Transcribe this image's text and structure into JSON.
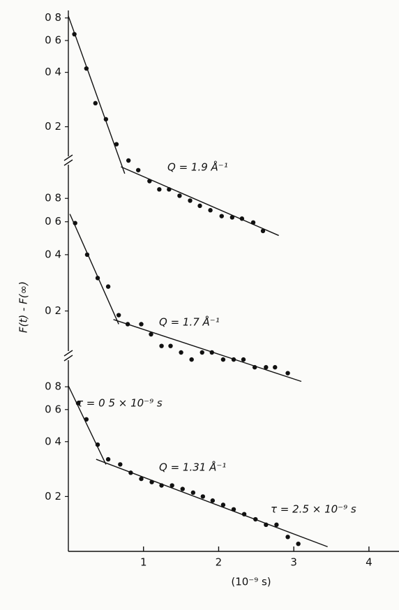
{
  "chart_data": {
    "type": "scatter",
    "log_y": true,
    "y_label": "F(t) - F(∞)",
    "x_label": "(10⁻⁹ s)",
    "xlim": [
      0,
      4.4
    ],
    "xticks": [
      1,
      2,
      3,
      4
    ],
    "color": "#111111",
    "panels": [
      {
        "ylim": [
          0.13,
          0.88
        ],
        "yticks": [
          {
            "value": 0.8,
            "label": "0 8"
          },
          {
            "value": 0.6,
            "label": "0 6"
          },
          {
            "value": 0.4,
            "label": "0 4"
          },
          {
            "value": 0.2,
            "label": "0 2"
          }
        ],
        "points": {
          "x": [
            0.08,
            0.24,
            0.36,
            0.5,
            0.64,
            0.8,
            0.93,
            1.08,
            1.21,
            1.34,
            1.48,
            1.62,
            1.75,
            1.89,
            2.04,
            2.18,
            2.31,
            2.46,
            2.59
          ],
          "values": [
            0.65,
            0.42,
            0.27,
            0.22,
            0.16,
            0.13,
            0.115,
            0.1,
            0.09,
            0.09,
            0.083,
            0.078,
            0.073,
            0.069,
            0.064,
            0.063,
            0.062,
            0.059,
            0.053
          ]
        },
        "fits": [
          {
            "x": [
              0,
              0.75
            ],
            "values": [
              0.82,
              0.11
            ]
          },
          {
            "x": [
              0.7,
              2.8
            ],
            "values": [
              0.12,
              0.05
            ]
          }
        ],
        "annotations": [
          "Q = 1.9 Å⁻¹"
        ]
      },
      {
        "ylim": [
          0.12,
          1.17
        ],
        "yticks": [
          {
            "value": 0.8,
            "label": "0 8"
          },
          {
            "value": 0.6,
            "label": "0 6"
          },
          {
            "value": 0.4,
            "label": "0 4"
          },
          {
            "value": 0.2,
            "label": "0 2"
          }
        ],
        "points": {
          "x": [
            0.09,
            0.25,
            0.39,
            0.53,
            0.67,
            0.79,
            0.97,
            1.1,
            1.24,
            1.36,
            1.5,
            1.64,
            1.78,
            1.91,
            2.06,
            2.2,
            2.33,
            2.48,
            2.63,
            2.75,
            2.92
          ],
          "values": [
            0.59,
            0.4,
            0.3,
            0.27,
            0.19,
            0.17,
            0.17,
            0.15,
            0.13,
            0.13,
            0.12,
            0.11,
            0.12,
            0.12,
            0.11,
            0.11,
            0.11,
            0.1,
            0.1,
            0.1,
            0.093
          ]
        },
        "fits": [
          {
            "x": [
              0.02,
              0.67
            ],
            "values": [
              0.66,
              0.17
            ]
          },
          {
            "x": [
              0.6,
              3.1
            ],
            "values": [
              0.18,
              0.084
            ]
          }
        ],
        "annotations": [
          "Q = 1.7 Å⁻¹"
        ]
      },
      {
        "ylim": [
          0.1,
          1.13
        ],
        "yticks": [
          {
            "value": 0.8,
            "label": "0 8"
          },
          {
            "value": 0.6,
            "label": "0 6"
          },
          {
            "value": 0.4,
            "label": "0 4"
          },
          {
            "value": 0.2,
            "label": "0 2"
          }
        ],
        "points": {
          "x": [
            0.13,
            0.24,
            0.39,
            0.53,
            0.69,
            0.83,
            0.97,
            1.11,
            1.24,
            1.38,
            1.52,
            1.66,
            1.79,
            1.92,
            2.06,
            2.2,
            2.34,
            2.49,
            2.63,
            2.77,
            2.92,
            3.06
          ],
          "values": [
            0.65,
            0.53,
            0.385,
            0.32,
            0.3,
            0.27,
            0.25,
            0.24,
            0.23,
            0.23,
            0.22,
            0.21,
            0.2,
            0.19,
            0.18,
            0.17,
            0.16,
            0.15,
            0.14,
            0.14,
            0.12,
            0.11
          ]
        },
        "fits": [
          {
            "x": [
              0,
              0.5
            ],
            "values": [
              0.81,
              0.3
            ]
          },
          {
            "x": [
              0.37,
              3.45
            ],
            "values": [
              0.32,
              0.106
            ]
          }
        ],
        "annotations": [
          "τ = 0 5 × 10⁻⁹ s",
          "Q = 1.31 Å⁻¹",
          "τ = 2.5 × 10⁻⁹ s"
        ]
      }
    ]
  }
}
